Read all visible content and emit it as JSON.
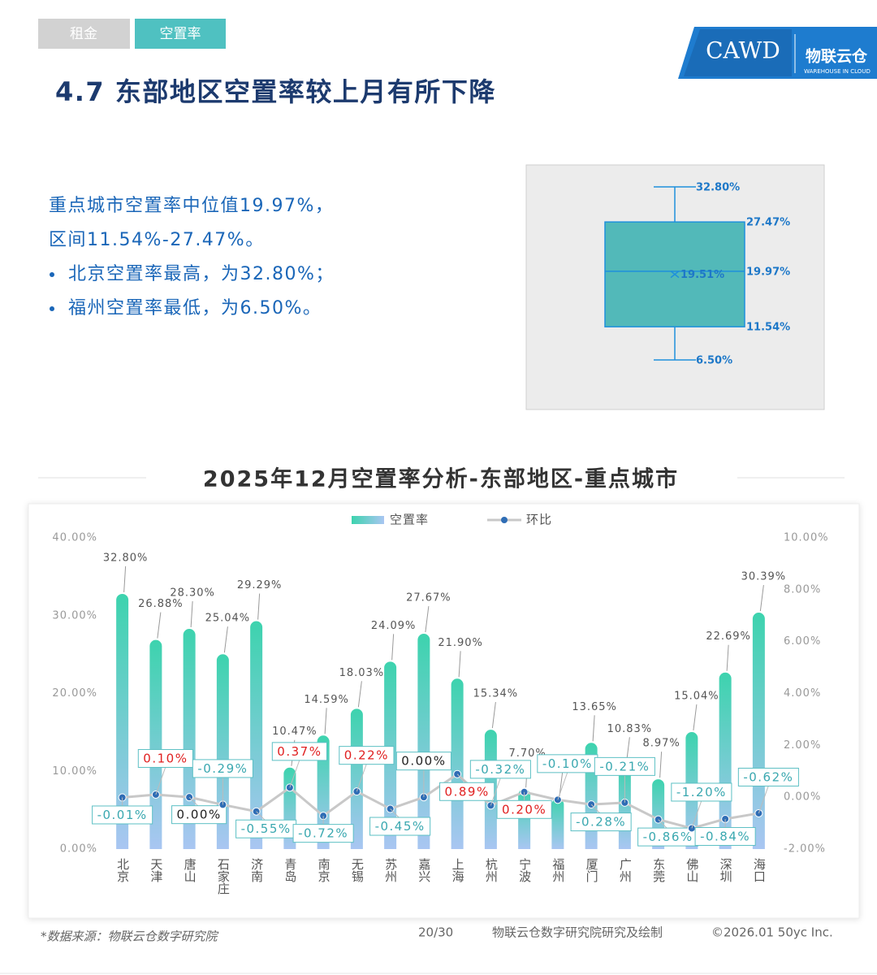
{
  "tabs": [
    "租金",
    "空置率"
  ],
  "logo": {
    "mark": "CAWD",
    "brand": "物联云仓",
    "brand_en": "WAREHOUSE IN CLOUD"
  },
  "heading": "4.7 东部地区空置率较上月有所下降",
  "summary": [
    "重点城市空置率中位值19.97%，",
    "区间11.54%-27.47%。",
    "北京空置率最高，为32.80%；",
    "福州空置率最低，为6.50%。"
  ],
  "chart_data": [
    {
      "type": "box",
      "values": [
        6.5,
        11.54,
        19.97,
        27.47,
        32.8
      ],
      "value_labels": [
        "6.50%",
        "11.54%",
        "19.97%",
        "27.47%",
        "32.80%"
      ],
      "mean": 19.51,
      "mean_label": "19.51%",
      "color": "#52b9b9",
      "stroke": "#1e90dc"
    },
    {
      "type": "bar_line",
      "title": "2025年12月空置率分析-东部地区-重点城市",
      "categories": [
        "北京",
        "天津",
        "唐山",
        "石家庄",
        "济南",
        "青岛",
        "南京",
        "无锡",
        "苏州",
        "嘉兴",
        "上海",
        "杭州",
        "宁波",
        "福州",
        "厦门",
        "广州",
        "东莞",
        "佛山",
        "深圳",
        "海口"
      ],
      "series": [
        {
          "name": "空置率",
          "color": "#3dd3ae",
          "values": [
            32.8,
            26.88,
            28.3,
            25.04,
            29.29,
            10.47,
            14.59,
            18.03,
            24.09,
            27.67,
            21.9,
            15.34,
            7.7,
            6.5,
            13.65,
            10.83,
            8.97,
            15.04,
            22.69,
            30.39
          ],
          "value_labels": [
            "32.80%",
            "26.88%",
            "28.30%",
            "25.04%",
            "29.29%",
            "10.47%",
            "14.59%",
            "18.03%",
            "24.09%",
            "27.67%",
            "21.90%",
            "15.34%",
            "7.70%",
            "6.50%",
            "13.65%",
            "10.83%",
            "8.97%",
            "15.04%",
            "22.69%",
            "30.39%"
          ]
        },
        {
          "name": "环比",
          "color": "#c8c8c8",
          "marker_color": "#2f6db5",
          "axis": "y2",
          "values": [
            -0.01,
            0.1,
            0.0,
            -0.29,
            -0.55,
            0.37,
            -0.72,
            0.22,
            -0.45,
            0.0,
            0.89,
            -0.32,
            0.2,
            -0.1,
            -0.28,
            -0.21,
            -0.86,
            -1.2,
            -0.84,
            -0.62
          ],
          "value_labels": [
            "-0.01%",
            "0.10%",
            "0.00%",
            "-0.29%",
            "-0.55%",
            "0.37%",
            "-0.72%",
            "0.22%",
            "-0.45%",
            "0.00%",
            "0.89%",
            "-0.32%",
            "0.20%",
            "-0.10%",
            "-0.28%",
            "-0.21%",
            "-0.86%",
            "-1.20%",
            "-0.84%",
            "-0.62%"
          ]
        }
      ],
      "ylim": [
        0,
        40
      ],
      "yticks": [
        {
          "value": 0,
          "label": "0.00%"
        },
        {
          "value": 10,
          "label": "10.00%"
        },
        {
          "value": 20,
          "label": "20.00%"
        },
        {
          "value": 30,
          "label": "30.00%"
        },
        {
          "value": 40,
          "label": "40.00%"
        }
      ],
      "y2lim": [
        -2,
        10
      ],
      "y2ticks": [
        {
          "value": -2,
          "label": "-2.00%"
        },
        {
          "value": 0,
          "label": "0.00%"
        },
        {
          "value": 2,
          "label": "2.00%"
        },
        {
          "value": 4,
          "label": "4.00%"
        },
        {
          "value": 6,
          "label": "6.00%"
        },
        {
          "value": 8,
          "label": "8.00%"
        },
        {
          "value": 10,
          "label": "10.00%"
        }
      ]
    }
  ],
  "footer": {
    "source": "*数据来源：物联云仓数字研究院",
    "page": "20/30",
    "credit": "物联云仓数字研究院研究及绘制",
    "copyright": "©2026.01 50yc Inc."
  }
}
